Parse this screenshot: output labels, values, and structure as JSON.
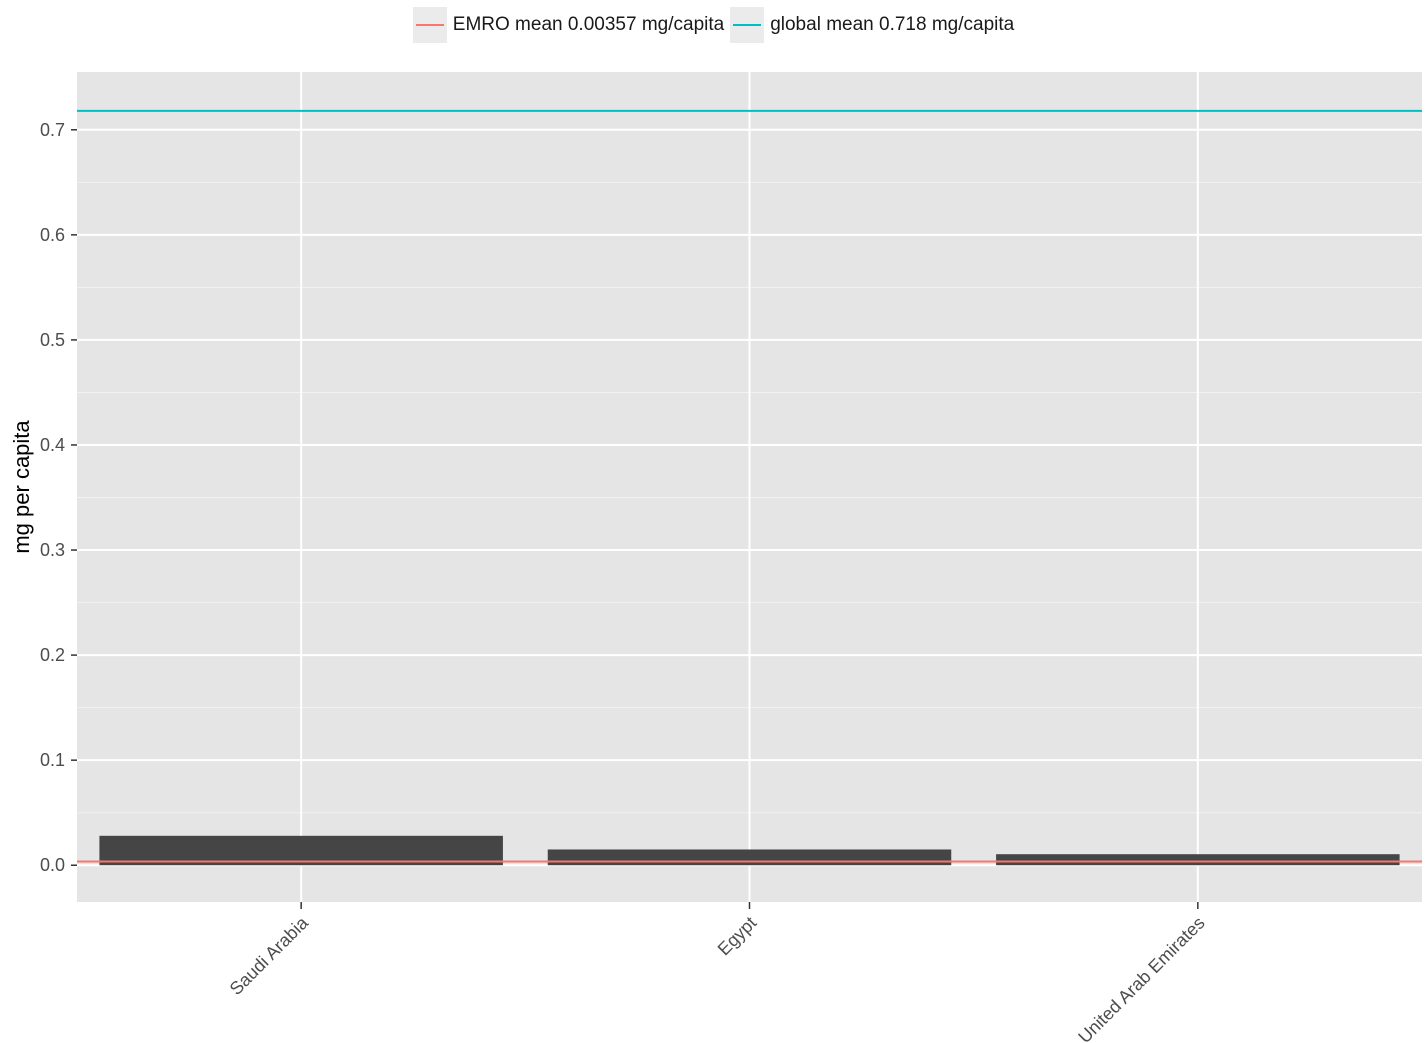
{
  "chart_data": {
    "type": "bar",
    "title": "",
    "xlabel": "",
    "ylabel": "mg per capita",
    "categories": [
      "Saudi Arabia",
      "Egypt",
      "United Arab Emirates"
    ],
    "values": [
      0.028,
      0.015,
      0.0105
    ],
    "ylim": [
      -0.035,
      0.755
    ],
    "yticks": [
      "0.0",
      "0.1",
      "0.2",
      "0.3",
      "0.4",
      "0.5",
      "0.6",
      "0.7"
    ],
    "bar_color": "#454545",
    "panel_color": "#e5e5e5",
    "grid": true,
    "legend_position": "top",
    "reference_lines": [
      {
        "name": "EMRO mean 0.00357 mg/capita",
        "value": 0.00357,
        "color": "#f8766d"
      },
      {
        "name": "global mean 0.718 mg/capita",
        "value": 0.718,
        "color": "#00bfc4"
      }
    ]
  }
}
